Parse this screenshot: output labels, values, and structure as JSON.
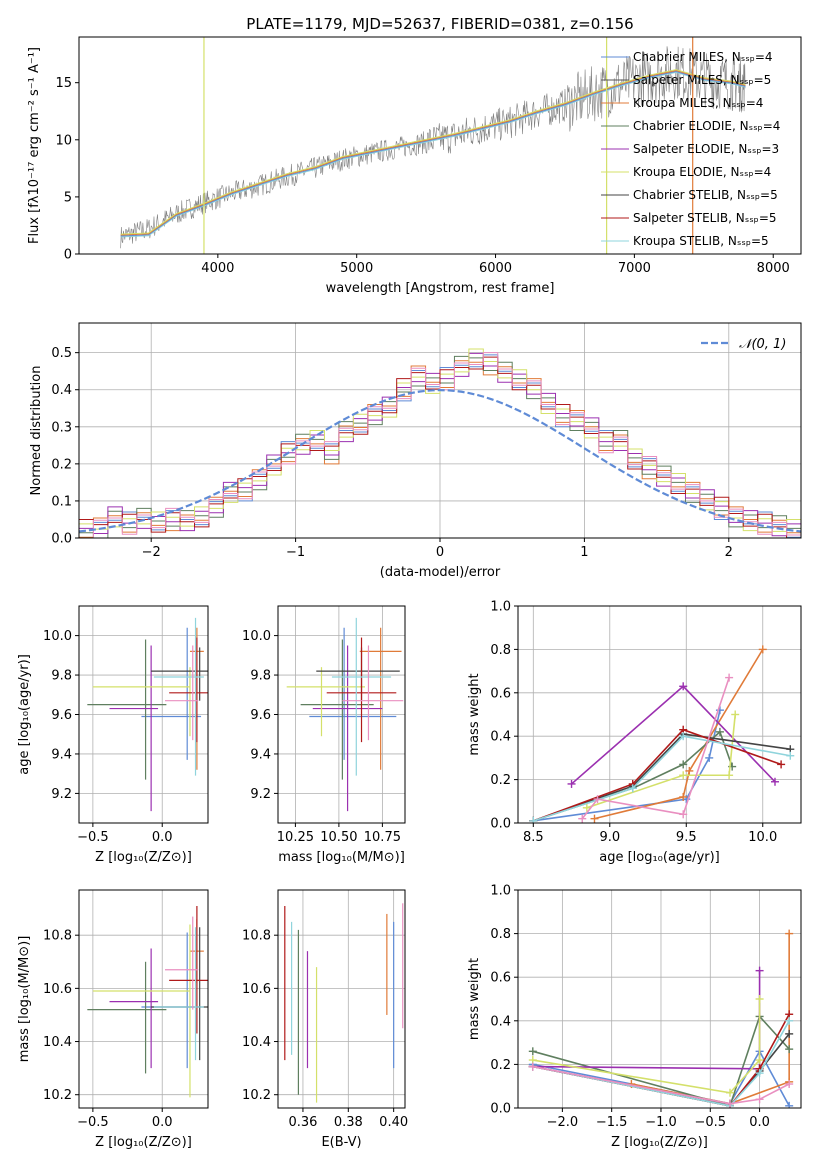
{
  "chart_data": [
    {
      "id": "spectrum",
      "type": "line",
      "title": "PLATE=1179, MJD=52637, FIBERID=0381, z=0.156",
      "xlabel": "wavelength [Angstrom, rest frame]",
      "ylabel": "Flux [fλ10⁻¹⁷ erg cm⁻² s⁻¹ A⁻¹]",
      "xlim": [
        3000,
        8200
      ],
      "ylim": [
        0,
        19
      ],
      "xticks": [
        "4000",
        "5000",
        "6000",
        "7000",
        "8000"
      ],
      "yticks": [
        "0",
        "5",
        "10",
        "15"
      ],
      "legend": "top-right",
      "legend_entries": [
        {
          "label": "Chabrier MILES, Nₛₛₚ=4",
          "color": "#5f8bd6"
        },
        {
          "label": "Salpeter MILES, Nₛₛₚ=5",
          "color": "#555555"
        },
        {
          "label": "Kroupa MILES, Nₛₛₚ=4",
          "color": "#e07b39"
        },
        {
          "label": "Chabrier ELODIE, Nₛₛₚ=4",
          "color": "#5f7f5f"
        },
        {
          "label": "Salpeter ELODIE, Nₛₛₚ=3",
          "color": "#9b30b0"
        },
        {
          "label": "Kroupa ELODIE, Nₛₛₚ=4",
          "color": "#d4e06a"
        },
        {
          "label": "Chabrier STELIB, Nₛₛₚ=5",
          "color": "#444444"
        },
        {
          "label": "Salpeter STELIB, Nₛₛₚ=5",
          "color": "#b01a1a"
        },
        {
          "label": "Kroupa STELIB, Nₛₛₚ=5",
          "color": "#8fd4dc"
        }
      ],
      "series": [
        {
          "name": "data",
          "x": [
            3300,
            3500,
            3700,
            3900,
            4100,
            4300,
            4500,
            4700,
            4900,
            5100,
            5300,
            5500,
            5700,
            5900,
            6100,
            6300,
            6500,
            6700,
            6900,
            7100,
            7300,
            7500,
            7700,
            7800
          ],
          "values": [
            1.5,
            2.2,
            3.5,
            4.5,
            5.3,
            6.0,
            6.8,
            7.5,
            8.3,
            8.8,
            9.3,
            9.8,
            10.3,
            11.0,
            11.5,
            12.4,
            13.0,
            14.0,
            14.8,
            15.5,
            16.0,
            15.3,
            15.0,
            14.8
          ]
        },
        {
          "name": "model",
          "x": [
            3300,
            3500,
            3700,
            3900,
            4100,
            4300,
            4500,
            4700,
            4900,
            5100,
            5300,
            5500,
            5700,
            5900,
            6100,
            6300,
            6500,
            6700,
            6900,
            7100,
            7300,
            7500,
            7700,
            7800
          ],
          "values": [
            1.5,
            1.6,
            3.3,
            4.2,
            5.2,
            6.0,
            6.8,
            7.4,
            8.3,
            8.8,
            9.3,
            9.8,
            10.3,
            10.9,
            11.5,
            12.3,
            13.0,
            13.9,
            14.7,
            15.4,
            15.9,
            15.2,
            14.9,
            14.6
          ]
        }
      ]
    },
    {
      "id": "residuals",
      "type": "line",
      "xlabel": "(data-model)/error",
      "ylabel": "Normed distribution",
      "xlim": [
        -2.5,
        2.5
      ],
      "ylim": [
        0,
        0.58
      ],
      "xticks": [
        "−2",
        "−1",
        "0",
        "1",
        "2"
      ],
      "yticks": [
        "0.0",
        "0.1",
        "0.2",
        "0.3",
        "0.4",
        "0.5"
      ],
      "legend": "top-right",
      "legend_label": "𝒩(0, 1)",
      "normal_color": "#5f8bd6",
      "hist_colors": [
        "#5f8bd6",
        "#e07b39",
        "#5f7f5f",
        "#9b30b0",
        "#d4e06a",
        "#b01a1a",
        "#e98fc0"
      ],
      "bin_edges_start": -2.5,
      "bin_width": 0.1,
      "hist_values": [
        0.02,
        0.03,
        0.06,
        0.04,
        0.05,
        0.04,
        0.05,
        0.05,
        0.06,
        0.08,
        0.12,
        0.13,
        0.16,
        0.2,
        0.23,
        0.25,
        0.26,
        0.23,
        0.29,
        0.31,
        0.33,
        0.35,
        0.4,
        0.44,
        0.42,
        0.43,
        0.46,
        0.48,
        0.47,
        0.45,
        0.43,
        0.4,
        0.36,
        0.33,
        0.32,
        0.3,
        0.26,
        0.26,
        0.21,
        0.19,
        0.17,
        0.15,
        0.12,
        0.1,
        0.08,
        0.06,
        0.05,
        0.04,
        0.03,
        0.02
      ]
    },
    {
      "id": "age-vs-z",
      "type": "scatter",
      "xlabel": "Z [log₁₀(Z/Z⊙)]",
      "ylabel": "age  [log₁₀(age/yr)]",
      "xlim": [
        -0.6,
        0.33
      ],
      "ylim": [
        9.05,
        10.15
      ],
      "xticks": [
        "−0.5",
        "0.0"
      ],
      "yticks": [
        "9.2",
        "9.4",
        "9.6",
        "9.8",
        "10.0"
      ],
      "points": [
        {
          "x": 0.18,
          "y": 9.59,
          "xerr": [
            0.33,
            0.1
          ],
          "yerr": [
            0.22,
            0.45
          ],
          "color": "#5f8bd6"
        },
        {
          "x": 0.25,
          "y": 9.92,
          "xerr": [
            0.05,
            0.05
          ],
          "yerr": [
            0.6,
            0.12
          ],
          "color": "#e07b39"
        },
        {
          "x": -0.12,
          "y": 9.65,
          "xerr": [
            0.42,
            0.15
          ],
          "yerr": [
            0.38,
            0.33
          ],
          "color": "#5f7f5f"
        },
        {
          "x": -0.08,
          "y": 9.63,
          "xerr": [
            0.3,
            0.05
          ],
          "yerr": [
            0.52,
            0.32
          ],
          "color": "#9b30b0"
        },
        {
          "x": 0.2,
          "y": 9.74,
          "xerr": [
            0.7,
            0.0
          ],
          "yerr": [
            0.25,
            0.1
          ],
          "color": "#d4e06a"
        },
        {
          "x": 0.27,
          "y": 9.82,
          "xerr": [
            0.35,
            0.06
          ],
          "yerr": [
            0.15,
            0.12
          ],
          "color": "#444444"
        },
        {
          "x": 0.25,
          "y": 9.71,
          "xerr": [
            0.2,
            0.08
          ],
          "yerr": [
            0.25,
            0.28
          ],
          "color": "#b01a1a"
        },
        {
          "x": 0.24,
          "y": 9.79,
          "xerr": [
            0.3,
            0.06
          ],
          "yerr": [
            0.5,
            0.3
          ],
          "color": "#8fd4dc"
        },
        {
          "x": 0.22,
          "y": 9.67,
          "xerr": [
            0.2,
            0.04
          ],
          "yerr": [
            0.2,
            0.28
          ],
          "color": "#e98fc0"
        }
      ]
    },
    {
      "id": "age-vs-mass",
      "type": "scatter",
      "xlabel": "mass [log₁₀(M/M⊙)]",
      "ylabel": "",
      "xlim": [
        10.15,
        10.88
      ],
      "ylim": [
        9.05,
        10.15
      ],
      "xticks": [
        "10.25",
        "10.50",
        "10.75"
      ],
      "yticks": [
        "9.2",
        "9.4",
        "9.6",
        "9.8",
        "10.0"
      ],
      "points": [
        {
          "x": 10.53,
          "y": 9.59,
          "xerr": [
            0.2,
            0.3
          ],
          "yerr": [
            0.22,
            0.45
          ],
          "color": "#5f8bd6"
        },
        {
          "x": 10.74,
          "y": 9.92,
          "xerr": [
            0.12,
            0.12
          ],
          "yerr": [
            0.6,
            0.12
          ],
          "color": "#e07b39"
        },
        {
          "x": 10.52,
          "y": 9.65,
          "xerr": [
            0.24,
            0.18
          ],
          "yerr": [
            0.38,
            0.33
          ],
          "color": "#5f7f5f"
        },
        {
          "x": 10.55,
          "y": 9.63,
          "xerr": [
            0.2,
            0.2
          ],
          "yerr": [
            0.52,
            0.32
          ],
          "color": "#9b30b0"
        },
        {
          "x": 10.4,
          "y": 9.74,
          "xerr": [
            0.2,
            0.25
          ],
          "yerr": [
            0.25,
            0.1
          ],
          "color": "#d4e06a"
        },
        {
          "x": 10.63,
          "y": 9.82,
          "xerr": [
            0.26,
            0.22
          ],
          "yerr": [
            0.15,
            0.12
          ],
          "color": "#444444"
        },
        {
          "x": 10.63,
          "y": 9.71,
          "xerr": [
            0.2,
            0.2
          ],
          "yerr": [
            0.25,
            0.28
          ],
          "color": "#b01a1a"
        },
        {
          "x": 10.6,
          "y": 9.79,
          "xerr": [
            0.14,
            0.2
          ],
          "yerr": [
            0.5,
            0.3
          ],
          "color": "#8fd4dc"
        },
        {
          "x": 10.67,
          "y": 9.67,
          "xerr": [
            0.15,
            0.2
          ],
          "yerr": [
            0.2,
            0.28
          ],
          "color": "#e98fc0"
        }
      ]
    },
    {
      "id": "weight-vs-age",
      "type": "line",
      "xlabel": "age  [log₁₀(age/yr)]",
      "ylabel": "mass weight",
      "xlim": [
        8.4,
        10.25
      ],
      "ylim": [
        0,
        1.0
      ],
      "xticks": [
        "8.5",
        "9.0",
        "9.5",
        "10.0"
      ],
      "yticks": [
        "0.0",
        "0.2",
        "0.4",
        "0.6",
        "0.8",
        "1.0"
      ],
      "series": [
        {
          "color": "#5f8bd6",
          "x": [
            8.5,
            9.5,
            9.65,
            9.72
          ],
          "values": [
            0.01,
            0.11,
            0.3,
            0.52
          ]
        },
        {
          "color": "#e07b39",
          "x": [
            8.9,
            9.48,
            9.52,
            10.0
          ],
          "values": [
            0.02,
            0.12,
            0.24,
            0.8
          ]
        },
        {
          "color": "#5f7f5f",
          "x": [
            8.5,
            9.15,
            9.48,
            9.72,
            9.8
          ],
          "values": [
            0.01,
            0.16,
            0.27,
            0.42,
            0.26
          ]
        },
        {
          "color": "#9b30b0",
          "x": [
            8.75,
            9.48,
            10.08
          ],
          "values": [
            0.18,
            0.63,
            0.19
          ]
        },
        {
          "color": "#d4e06a",
          "x": [
            8.85,
            9.48,
            9.78,
            9.82
          ],
          "values": [
            0.07,
            0.22,
            0.22,
            0.5
          ]
        },
        {
          "color": "#444444",
          "x": [
            8.5,
            9.15,
            9.48,
            10.18
          ],
          "values": [
            0.01,
            0.17,
            0.41,
            0.34
          ]
        },
        {
          "color": "#b01a1a",
          "x": [
            8.5,
            9.15,
            9.48,
            10.12
          ],
          "values": [
            0.01,
            0.18,
            0.43,
            0.27
          ]
        },
        {
          "color": "#8fd4dc",
          "x": [
            8.5,
            9.15,
            9.48,
            10.18
          ],
          "values": [
            0.01,
            0.16,
            0.4,
            0.31
          ]
        },
        {
          "color": "#e98fc0",
          "x": [
            8.82,
            8.92,
            9.48,
            9.78
          ],
          "values": [
            0.02,
            0.11,
            0.04,
            0.67
          ]
        }
      ]
    },
    {
      "id": "mass-vs-z",
      "type": "scatter",
      "xlabel": "Z [log₁₀(Z/Z⊙)]",
      "ylabel": "mass [log₁₀(M/M⊙)]",
      "xlim": [
        -0.6,
        0.33
      ],
      "ylim": [
        10.15,
        10.97
      ],
      "xticks": [
        "−0.5",
        "0.0"
      ],
      "yticks": [
        "10.2",
        "10.4",
        "10.6",
        "10.8"
      ],
      "points": [
        {
          "x": 0.18,
          "y": 10.53,
          "xerr": [
            0.33,
            0.1
          ],
          "yerr": [
            0.23,
            0.28
          ],
          "color": "#5f8bd6"
        },
        {
          "x": 0.25,
          "y": 10.74,
          "xerr": [
            0.05,
            0.05
          ],
          "yerr": [
            0.12,
            0.12
          ],
          "color": "#e07b39"
        },
        {
          "x": -0.12,
          "y": 10.52,
          "xerr": [
            0.42,
            0.15
          ],
          "yerr": [
            0.24,
            0.18
          ],
          "color": "#5f7f5f"
        },
        {
          "x": -0.08,
          "y": 10.55,
          "xerr": [
            0.3,
            0.05
          ],
          "yerr": [
            0.25,
            0.2
          ],
          "color": "#9b30b0"
        },
        {
          "x": 0.2,
          "y": 10.59,
          "xerr": [
            0.7,
            0.0
          ],
          "yerr": [
            0.4,
            0.25
          ],
          "color": "#d4e06a"
        },
        {
          "x": 0.27,
          "y": 10.53,
          "xerr": [
            0.35,
            0.06
          ],
          "yerr": [
            0.2,
            0.3
          ],
          "color": "#444444"
        },
        {
          "x": 0.25,
          "y": 10.63,
          "xerr": [
            0.2,
            0.08
          ],
          "yerr": [
            0.2,
            0.28
          ],
          "color": "#b01a1a"
        },
        {
          "x": 0.24,
          "y": 10.53,
          "xerr": [
            0.3,
            0.06
          ],
          "yerr": [
            0.2,
            0.3
          ],
          "color": "#8fd4dc"
        },
        {
          "x": 0.22,
          "y": 10.67,
          "xerr": [
            0.2,
            0.04
          ],
          "yerr": [
            0.15,
            0.2
          ],
          "color": "#e98fc0"
        }
      ]
    },
    {
      "id": "mass-vs-ebv",
      "type": "scatter",
      "xlabel": "E(B-V)",
      "ylabel": "",
      "xlim": [
        0.349,
        0.405
      ],
      "ylim": [
        10.15,
        10.97
      ],
      "xticks": [
        "0.36",
        "0.38",
        "0.40"
      ],
      "yticks": [
        "10.2",
        "10.4",
        "10.6",
        "10.8"
      ],
      "points": [
        {
          "x": 0.352,
          "y": 10.58,
          "xerr": [
            0,
            0
          ],
          "yerr": [
            0.25,
            0.33
          ],
          "color": "#b01a1a"
        },
        {
          "x": 0.355,
          "y": 10.55,
          "xerr": [
            0,
            0
          ],
          "yerr": [
            0.2,
            0.3
          ],
          "color": "#8fd4dc"
        },
        {
          "x": 0.358,
          "y": 10.5,
          "xerr": [
            0,
            0
          ],
          "yerr": [
            0.3,
            0.32
          ],
          "color": "#5f7f5f"
        },
        {
          "x": 0.362,
          "y": 10.58,
          "xerr": [
            0,
            0
          ],
          "yerr": [
            0.28,
            0.16
          ],
          "color": "#9b30b0"
        },
        {
          "x": 0.366,
          "y": 10.45,
          "xerr": [
            0,
            0
          ],
          "yerr": [
            0.28,
            0.23
          ],
          "color": "#d4e06a"
        },
        {
          "x": 0.397,
          "y": 10.7,
          "xerr": [
            0,
            0
          ],
          "yerr": [
            0.2,
            0.18
          ],
          "color": "#e07b39"
        },
        {
          "x": 0.4,
          "y": 10.55,
          "xerr": [
            0,
            0
          ],
          "yerr": [
            0.25,
            0.3
          ],
          "color": "#5f8bd6"
        },
        {
          "x": 0.404,
          "y": 10.7,
          "xerr": [
            0,
            0
          ],
          "yerr": [
            0.25,
            0.22
          ],
          "color": "#e98fc0"
        }
      ]
    },
    {
      "id": "weight-vs-z",
      "type": "line",
      "xlabel": "Z [log₁₀(Z/Z⊙)]",
      "ylabel": "mass weight",
      "xlim": [
        -2.45,
        0.42
      ],
      "ylim": [
        0,
        1.0
      ],
      "xticks": [
        "−2.0",
        "−1.5",
        "−1.0",
        "−0.5",
        "0.0"
      ],
      "yticks": [
        "0.0",
        "0.2",
        "0.4",
        "0.6",
        "0.8",
        "1.0"
      ],
      "series": [
        {
          "color": "#5f8bd6",
          "x": [
            -2.3,
            -0.3,
            0.0,
            0.3
          ],
          "values": [
            0.2,
            0.02,
            0.26,
            0.01
          ]
        },
        {
          "color": "#e07b39",
          "x": [
            -1.3,
            -0.3,
            0.3,
            0.3
          ],
          "values": [
            0.11,
            0.02,
            0.12,
            0.8
          ]
        },
        {
          "color": "#5f7f5f",
          "x": [
            -2.3,
            -0.3,
            0.0,
            0.3
          ],
          "values": [
            0.26,
            0.01,
            0.42,
            0.27
          ]
        },
        {
          "color": "#9b30b0",
          "x": [
            -2.3,
            0.0,
            0.0
          ],
          "values": [
            0.19,
            0.18,
            0.63
          ]
        },
        {
          "color": "#d4e06a",
          "x": [
            -2.3,
            -0.3,
            0.0,
            0.0
          ],
          "values": [
            0.22,
            0.07,
            0.22,
            0.5
          ]
        },
        {
          "color": "#444444",
          "x": [
            -2.3,
            -0.3,
            0.0,
            0.3
          ],
          "values": [
            0.19,
            0.01,
            0.17,
            0.34
          ]
        },
        {
          "color": "#b01a1a",
          "x": [
            -2.3,
            -0.3,
            0.0,
            0.3
          ],
          "values": [
            0.19,
            0.01,
            0.18,
            0.43
          ]
        },
        {
          "color": "#8fd4dc",
          "x": [
            -2.3,
            -0.3,
            0.0,
            0.3
          ],
          "values": [
            0.19,
            0.01,
            0.16,
            0.4
          ]
        },
        {
          "color": "#e98fc0",
          "x": [
            -2.3,
            -0.3,
            0.0,
            0.3
          ],
          "values": [
            0.19,
            0.02,
            0.04,
            0.11
          ]
        }
      ]
    }
  ]
}
